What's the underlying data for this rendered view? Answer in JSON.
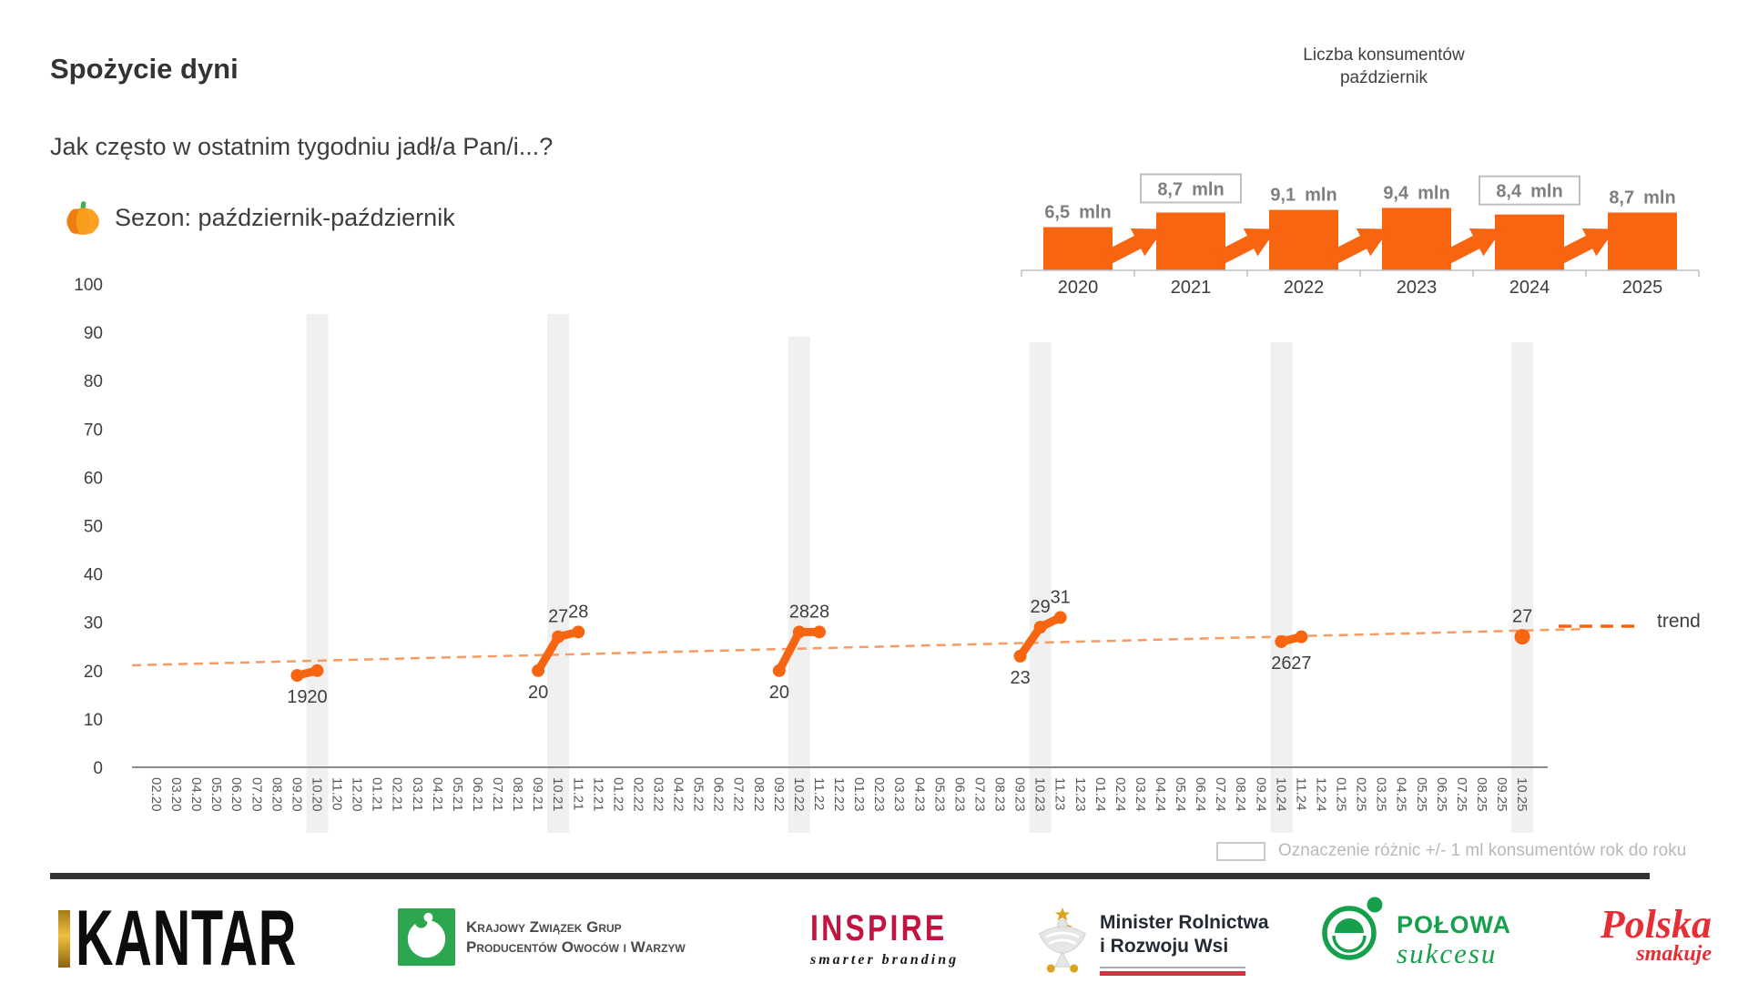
{
  "colors": {
    "accent_orange": "#F76511",
    "trend_orange": "#F79A64",
    "band_gray": "#F0F0F0",
    "value_label_gray": "#7F7F7F",
    "axis_gray": "#8C8C8C",
    "tick_label_gray": "#595959",
    "dark_label": "#3F3F3F",
    "legend_gray": "#B9B9B9",
    "divider": "#333333"
  },
  "header": {
    "title": "Spożycie dyni",
    "subtitle": "Jak często w ostatnim tygodniu jadł/a Pan/i...?",
    "season_label": "Sezon: październik-październik"
  },
  "chart_data": [
    {
      "id": "consumption-timeline",
      "type": "line",
      "ylim": [
        0,
        100
      ],
      "y_tick_step": 10,
      "y_ticks": [
        0,
        10,
        20,
        30,
        40,
        50,
        60,
        70,
        80,
        90,
        100
      ],
      "x_categories": [
        "02.20",
        "03.20",
        "04.20",
        "05.20",
        "06.20",
        "07.20",
        "08.20",
        "09.20",
        "10.20",
        "11.20",
        "12.20",
        "01.21",
        "02.21",
        "03.21",
        "04.21",
        "05.21",
        "06.21",
        "07.21",
        "08.21",
        "09.21",
        "10.21",
        "11.21",
        "12.21",
        "01.22",
        "02.22",
        "03.22",
        "04.22",
        "05.22",
        "06.22",
        "07.22",
        "08.22",
        "09.22",
        "10.22",
        "11.22",
        "12.22",
        "01.23",
        "02.23",
        "03.23",
        "04.23",
        "05.23",
        "06.23",
        "07.23",
        "08.23",
        "09.23",
        "10.23",
        "11.23",
        "12.23",
        "01.24",
        "02.24",
        "03.24",
        "04.24",
        "05.24",
        "06.24",
        "07.24",
        "08.24",
        "09.24",
        "10.24",
        "11.24",
        "12.24",
        "01.25",
        "02.25",
        "03.25",
        "04.25",
        "05.25",
        "06.25",
        "07.25",
        "08.25",
        "09.25",
        "10.25"
      ],
      "highlighted_x": [
        "10.20",
        "10.21",
        "10.22",
        "10.23",
        "10.24",
        "10.25"
      ],
      "points": [
        {
          "month": "09.20",
          "value": 19,
          "label": "19",
          "label_pos": "below",
          "group": 0
        },
        {
          "month": "10.20",
          "value": 20,
          "label": "20",
          "label_pos": "below",
          "group": 0
        },
        {
          "month": "09.21",
          "value": 20,
          "label": "20",
          "label_pos": "below",
          "group": 1
        },
        {
          "month": "10.21",
          "value": 27,
          "label": "27",
          "label_pos": "above",
          "group": 1
        },
        {
          "month": "11.21",
          "value": 28,
          "label": "28",
          "label_pos": "above",
          "group": 1
        },
        {
          "month": "09.22",
          "value": 20,
          "label": "20",
          "label_pos": "below",
          "group": 2
        },
        {
          "month": "10.22",
          "value": 28,
          "label": "28",
          "label_pos": "above",
          "group": 2
        },
        {
          "month": "11.22",
          "value": 28,
          "label": "28",
          "label_pos": "above",
          "group": 2
        },
        {
          "month": "09.23",
          "value": 23,
          "label": "23",
          "label_pos": "below",
          "group": 3
        },
        {
          "month": "10.23",
          "value": 29,
          "label": "29",
          "label_pos": "above",
          "group": 3
        },
        {
          "month": "11.23",
          "value": 31,
          "label": "31",
          "label_pos": "above",
          "group": 3
        },
        {
          "month": "10.24",
          "value": 26,
          "label": "26",
          "label_pos": "below",
          "group": 4
        },
        {
          "month": "11.24",
          "value": 27,
          "label": "27",
          "label_pos": "below",
          "group": 4
        },
        {
          "month": "10.25",
          "value": 27,
          "label": "27",
          "label_pos": "above",
          "group": 5
        }
      ],
      "trend": {
        "label": "trend",
        "start_value": 21.1,
        "end_value": 28.6
      }
    },
    {
      "id": "consumers-by-year",
      "type": "bar",
      "title_lines": [
        "Liczba konsumentów",
        "październik"
      ],
      "categories": [
        "2020",
        "2021",
        "2022",
        "2023",
        "2024",
        "2025"
      ],
      "values": [
        6.5,
        8.7,
        9.1,
        9.4,
        8.4,
        8.7
      ],
      "value_labels": [
        [
          "6,5",
          "mln"
        ],
        [
          "8,7",
          "mln"
        ],
        [
          "9,1",
          "mln"
        ],
        [
          "9,4",
          "mln"
        ],
        [
          "8,4",
          "mln"
        ],
        [
          "8,7",
          "mln"
        ]
      ],
      "boxed": [
        false,
        true,
        false,
        false,
        true,
        false
      ],
      "arrow_between_years": true
    }
  ],
  "footer": {
    "legend_note": "Oznaczenie różnic +/- 1 ml konsumentów rok do roku",
    "logos": {
      "kantar": "KANTAR",
      "kzg": {
        "line1": "Krajowy Związek Grup",
        "line2": "Producentów Owoców i Warzyw"
      },
      "inspire": {
        "name": "INSPIRE",
        "tagline": "smarter branding"
      },
      "ministry": {
        "line1": "Minister Rolnictwa",
        "line2": "i Rozwoju Wsi"
      },
      "polowa": {
        "line1": "POŁOWA",
        "line2": "sukcesu"
      },
      "polska": {
        "line1": "Polska",
        "line2": "smakuje"
      }
    }
  }
}
